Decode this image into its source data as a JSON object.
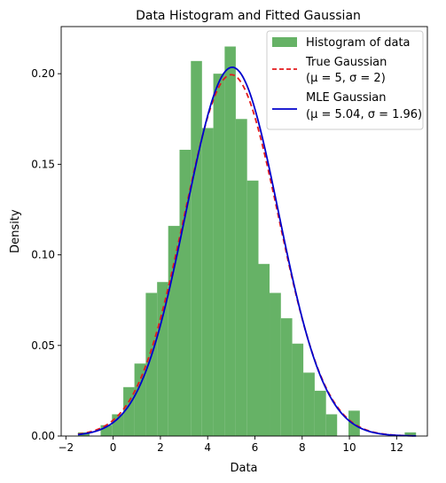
{
  "chart_data": {
    "type": "bar",
    "title": "Data Histogram and Fitted Gaussian",
    "xlabel": "Data",
    "ylabel": "Density",
    "xlim": [
      -2.2,
      13.3
    ],
    "ylim": [
      0,
      0.226
    ],
    "x_ticks": [
      -2,
      0,
      2,
      4,
      6,
      8,
      10,
      12
    ],
    "y_ticks": [
      0.0,
      0.05,
      0.1,
      0.15,
      0.2
    ],
    "x_tick_labels": [
      "−2",
      "0",
      "2",
      "4",
      "6",
      "8",
      "10",
      "12"
    ],
    "y_tick_labels": [
      "0.00",
      "0.05",
      "0.10",
      "0.15",
      "0.20"
    ],
    "grid": false,
    "legend_position": "top-right",
    "histogram": {
      "name": "Histogram of data",
      "color": "#66b266",
      "bin_edges": [
        -1.49,
        -1.0,
        -0.53,
        -0.05,
        0.43,
        0.9,
        1.38,
        1.86,
        2.33,
        2.81,
        3.29,
        3.76,
        4.24,
        4.72,
        5.19,
        5.67,
        6.15,
        6.62,
        7.1,
        7.58,
        8.05,
        8.53,
        9.01,
        9.48,
        9.96,
        10.44,
        10.91,
        11.39,
        11.87,
        12.34,
        12.82
      ],
      "densities": [
        0.002,
        0.0,
        0.006,
        0.012,
        0.027,
        0.04,
        0.079,
        0.085,
        0.116,
        0.158,
        0.207,
        0.17,
        0.2,
        0.215,
        0.175,
        0.141,
        0.095,
        0.079,
        0.065,
        0.051,
        0.035,
        0.025,
        0.012,
        0.0,
        0.014,
        0.0,
        0.0,
        0.0,
        0.0,
        0.002
      ]
    },
    "series": [
      {
        "name": "True Gaussian",
        "param_label": "(μ = 5, σ = 2)",
        "mu": 5,
        "sigma": 2,
        "color": "#e41a1c",
        "style": "dashed"
      },
      {
        "name": "MLE Gaussian",
        "param_label": "(μ = 5.04, σ = 1.96)",
        "mu": 5.04,
        "sigma": 1.96,
        "color": "#0000cc",
        "style": "solid"
      }
    ]
  }
}
